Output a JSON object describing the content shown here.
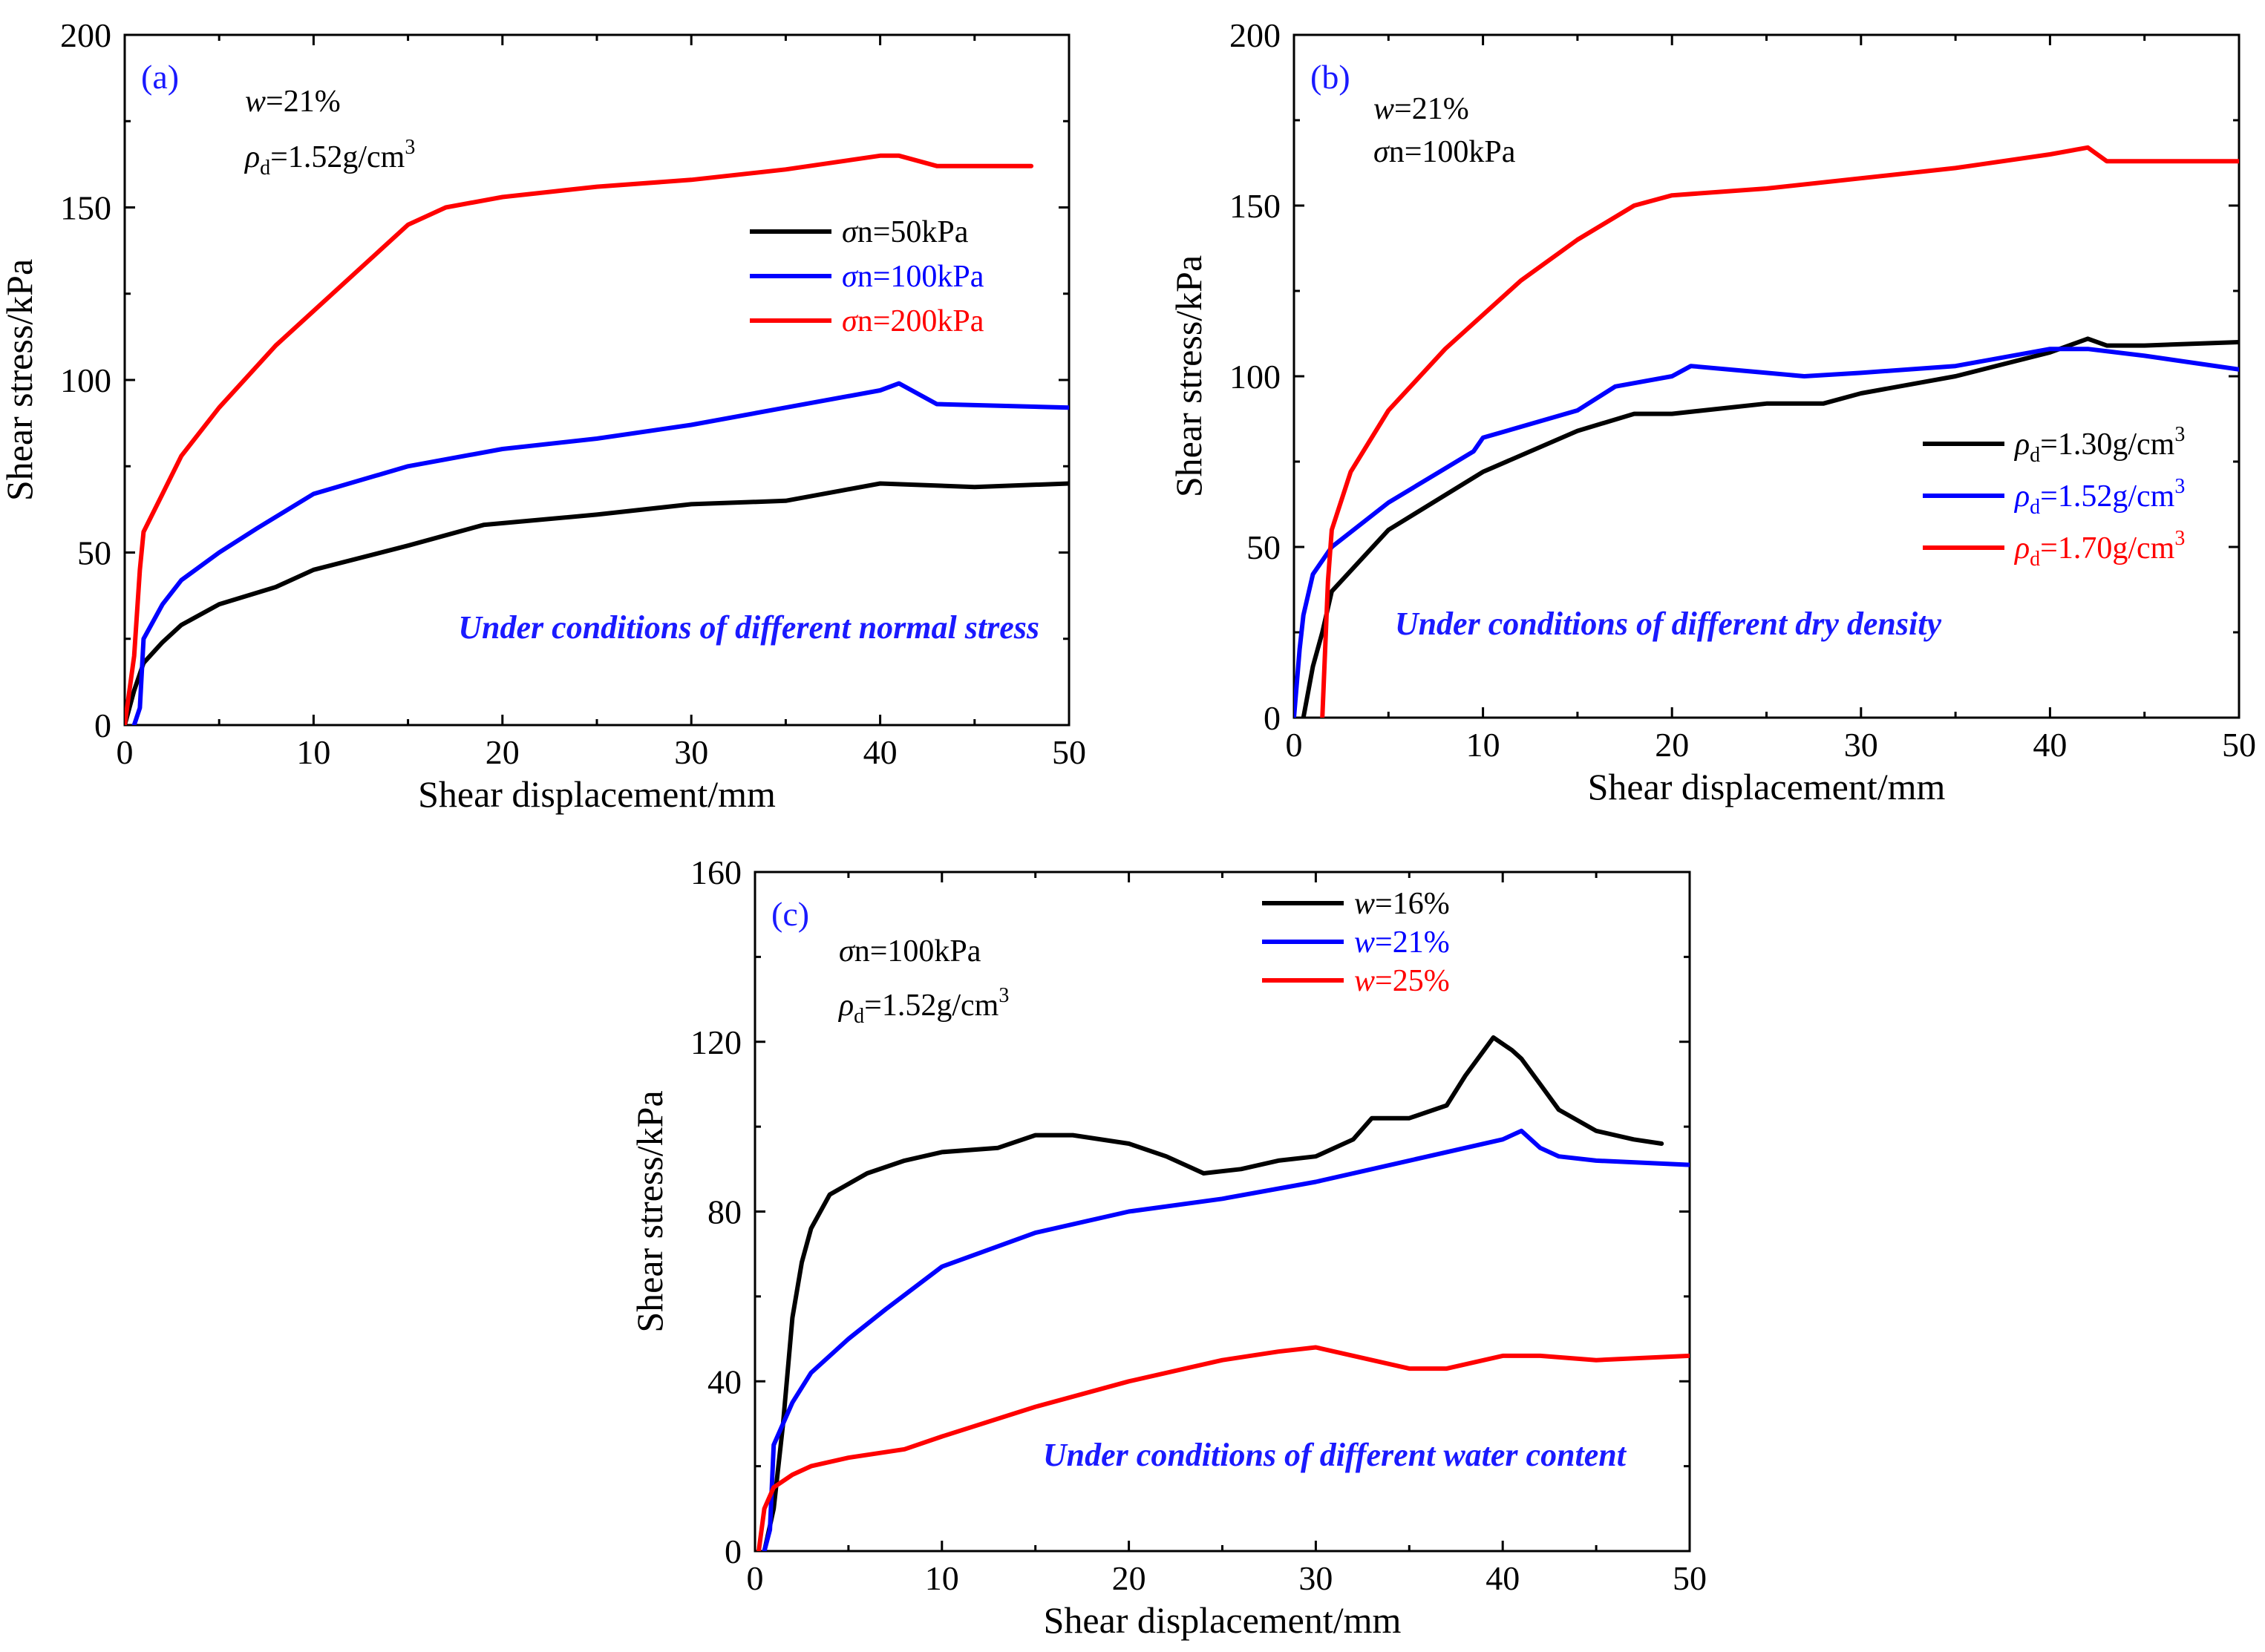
{
  "colors": {
    "black": "#000000",
    "blue": "#0000ff",
    "red": "#ff0000",
    "label_blue": "#1a1aff"
  },
  "chart_data": [
    {
      "type": "line",
      "panel_label": "(a)",
      "xlabel": "Shear displacement/mm",
      "ylabel": "Shear stress/kPa",
      "xlim": [
        0,
        50
      ],
      "ylim": [
        0,
        200
      ],
      "xticks": [
        "0",
        "10",
        "20",
        "30",
        "40",
        "50"
      ],
      "yticks": [
        "0",
        "50",
        "100",
        "150",
        "200"
      ],
      "annotation": {
        "var1": "w",
        "text1": "=21%",
        "var2": "ρ",
        "sub2": "d",
        "text2": "=1.52g/cm",
        "sup2": "3"
      },
      "condition": "Under conditions of different normal stress",
      "series": [
        {
          "name": "σn=50kPa",
          "var": "σ",
          "rest": "n=50kPa",
          "sub": "",
          "sup": "",
          "color": "#000000",
          "x": [
            0,
            0.5,
            1,
            2,
            3,
            5,
            8,
            10,
            15,
            19,
            25,
            30,
            35,
            38,
            40,
            45,
            50
          ],
          "y": [
            0,
            10,
            18,
            24,
            29,
            35,
            40,
            45,
            52,
            58,
            61,
            64,
            65,
            68,
            70,
            69,
            70
          ]
        },
        {
          "name": "σn=100kPa",
          "var": "σ",
          "rest": "n=100kPa",
          "sub": "",
          "sup": "",
          "color": "#0000ff",
          "x": [
            0.5,
            0.8,
            1,
            2,
            3,
            5,
            7,
            10,
            15,
            20,
            25,
            30,
            35,
            40,
            41,
            43,
            50
          ],
          "y": [
            0,
            5,
            25,
            35,
            42,
            50,
            57,
            67,
            75,
            80,
            83,
            87,
            92,
            97,
            99,
            93,
            92
          ]
        },
        {
          "name": "σn=200kPa",
          "var": "σ",
          "rest": "n=200kPa",
          "sub": "",
          "sup": "",
          "color": "#ff0000",
          "x": [
            0,
            0.5,
            0.8,
            1,
            2,
            3,
            5,
            8,
            10,
            13,
            15,
            17,
            20,
            25,
            30,
            35,
            40,
            41,
            43,
            48
          ],
          "y": [
            0,
            20,
            45,
            56,
            67,
            78,
            92,
            110,
            120,
            135,
            145,
            150,
            153,
            156,
            158,
            161,
            165,
            165,
            162,
            162
          ]
        }
      ]
    },
    {
      "type": "line",
      "panel_label": "(b)",
      "xlabel": "Shear displacement/mm",
      "ylabel": "Shear stress/kPa",
      "xlim": [
        0,
        50
      ],
      "ylim": [
        0,
        200
      ],
      "xticks": [
        "0",
        "10",
        "20",
        "30",
        "40",
        "50"
      ],
      "yticks": [
        "0",
        "50",
        "100",
        "150",
        "200"
      ],
      "annotation": {
        "var1": "w",
        "text1": "=21%",
        "var2": "σ",
        "text2": "n=100kPa"
      },
      "condition": "Under conditions of different dry density",
      "series": [
        {
          "name": "ρd=1.30g/cm3",
          "var": "ρ",
          "sub": "d",
          "rest": "=1.30g/cm",
          "sup": "3",
          "color": "#000000",
          "x": [
            0.5,
            1,
            1.5,
            2,
            5,
            10,
            15,
            18,
            20,
            25,
            28,
            30,
            35,
            40,
            42,
            43,
            45,
            50
          ],
          "y": [
            0,
            15,
            25,
            37,
            55,
            72,
            84,
            89,
            89,
            92,
            92,
            95,
            100,
            107,
            111,
            109,
            109,
            110
          ]
        },
        {
          "name": "ρd=1.52g/cm3",
          "var": "ρ",
          "sub": "d",
          "rest": "=1.52g/cm",
          "sup": "3",
          "color": "#0000ff",
          "x": [
            0,
            0.3,
            0.5,
            1,
            2,
            5,
            9.5,
            10,
            15,
            17,
            20,
            21,
            25,
            27,
            30,
            35,
            40,
            42,
            45,
            50
          ],
          "y": [
            0,
            20,
            30,
            42,
            50,
            63,
            78,
            82,
            90,
            97,
            100,
            103,
            101,
            100,
            101,
            103,
            108,
            108,
            106,
            102
          ]
        },
        {
          "name": "ρd=1.70g/cm3",
          "var": "ρ",
          "sub": "d",
          "rest": "=1.70g/cm",
          "sup": "3",
          "color": "#ff0000",
          "x": [
            1.5,
            1.8,
            2,
            3,
            5,
            8,
            10,
            12,
            15,
            18,
            20,
            25,
            30,
            35,
            40,
            42,
            43,
            45,
            50
          ],
          "y": [
            0,
            40,
            55,
            72,
            90,
            108,
            118,
            128,
            140,
            150,
            153,
            155,
            158,
            161,
            165,
            167,
            163,
            163,
            163
          ]
        }
      ]
    },
    {
      "type": "line",
      "panel_label": "(c)",
      "xlabel": "Shear displacement/mm",
      "ylabel": "Shear stress/kPa",
      "xlim": [
        0,
        50
      ],
      "ylim": [
        0,
        160
      ],
      "xticks": [
        "0",
        "10",
        "20",
        "30",
        "40",
        "50"
      ],
      "yticks": [
        "0",
        "40",
        "80",
        "120",
        "160"
      ],
      "annotation": {
        "var1": "σ",
        "text1": "n=100kPa",
        "var2": "ρ",
        "sub2": "d",
        "text2": "=1.52g/cm",
        "sup2": "3"
      },
      "condition": "Under conditions of different water content",
      "series": [
        {
          "name": "w=16%",
          "var": "w",
          "rest": "=16%",
          "sub": "",
          "sup": "",
          "color": "#000000",
          "x": [
            0.5,
            1,
            1.5,
            2,
            2.5,
            3,
            4,
            6,
            8,
            10,
            13,
            15,
            17,
            20,
            22,
            24,
            26,
            28,
            30,
            32,
            33,
            35,
            37,
            38,
            39.5,
            40.5,
            41,
            42,
            43,
            45,
            47,
            48.5
          ],
          "y": [
            0,
            10,
            30,
            55,
            68,
            76,
            84,
            89,
            92,
            94,
            95,
            98,
            98,
            96,
            93,
            89,
            90,
            92,
            93,
            97,
            102,
            102,
            105,
            112,
            121,
            118,
            116,
            110,
            104,
            99,
            97,
            96
          ]
        },
        {
          "name": "w=21%",
          "var": "w",
          "rest": "=21%",
          "sub": "",
          "sup": "",
          "color": "#0000ff",
          "x": [
            0.5,
            0.8,
            1,
            2,
            3,
            5,
            7,
            10,
            15,
            20,
            25,
            30,
            35,
            40,
            41,
            42,
            43,
            45,
            50
          ],
          "y": [
            0,
            5,
            25,
            35,
            42,
            50,
            57,
            67,
            75,
            80,
            83,
            87,
            92,
            97,
            99,
            95,
            93,
            92,
            91
          ]
        },
        {
          "name": "w=25%",
          "var": "w",
          "rest": "=25%",
          "sub": "",
          "sup": "",
          "color": "#ff0000",
          "x": [
            0.2,
            0.5,
            1,
            2,
            3,
            5,
            8,
            10,
            15,
            20,
            25,
            28,
            30,
            32,
            35,
            37,
            40,
            42,
            45,
            50
          ],
          "y": [
            0,
            10,
            15,
            18,
            20,
            22,
            24,
            27,
            34,
            40,
            45,
            47,
            48,
            46,
            43,
            43,
            46,
            46,
            45,
            46
          ]
        }
      ]
    }
  ]
}
